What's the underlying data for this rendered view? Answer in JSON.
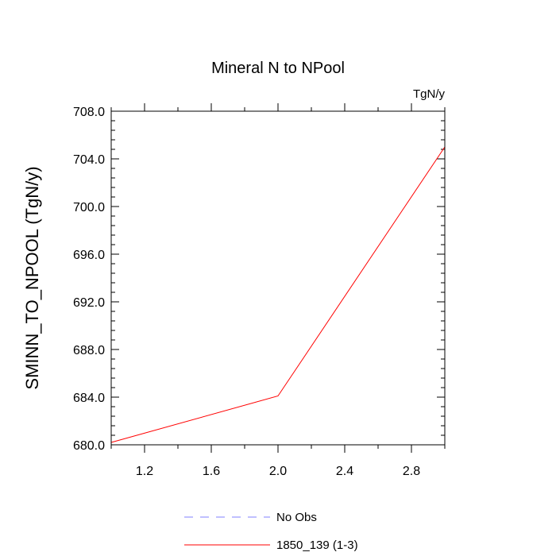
{
  "chart_data": {
    "type": "line",
    "title": "Mineral N to NPool",
    "unit_label": "TgN/y",
    "xlabel": "",
    "ylabel": "SMINN_TO_NPOOL  (TgN/y)",
    "xlim": [
      1.0,
      3.0
    ],
    "ylim": [
      680.0,
      708.0
    ],
    "x_ticks": [
      1.2,
      1.6,
      2.0,
      2.4,
      2.8
    ],
    "x_tick_labels": [
      "1.2",
      "1.6",
      "2.0",
      "2.4",
      "2.8"
    ],
    "y_ticks": [
      680,
      684,
      688,
      692,
      696,
      700,
      704,
      708
    ],
    "y_tick_labels": [
      "680.0",
      "684.0",
      "688.0",
      "692.0",
      "696.0",
      "700.0",
      "704.0",
      "708.0"
    ],
    "x_minor_step": 0.2,
    "y_minor_step": 0.8,
    "grid": false,
    "series": [
      {
        "name": "1850_139 (1-3)",
        "color": "#ff0000",
        "dash": "solid",
        "x": [
          1.0,
          2.0,
          3.0
        ],
        "y": [
          680.2,
          684.1,
          705.0
        ]
      }
    ],
    "legend": {
      "position": "bottom-center",
      "entries": [
        {
          "label": "No Obs",
          "color": "#8080ff",
          "dash": "dashed"
        },
        {
          "label": "1850_139 (1-3)",
          "color": "#ff0000",
          "dash": "solid"
        }
      ]
    }
  }
}
